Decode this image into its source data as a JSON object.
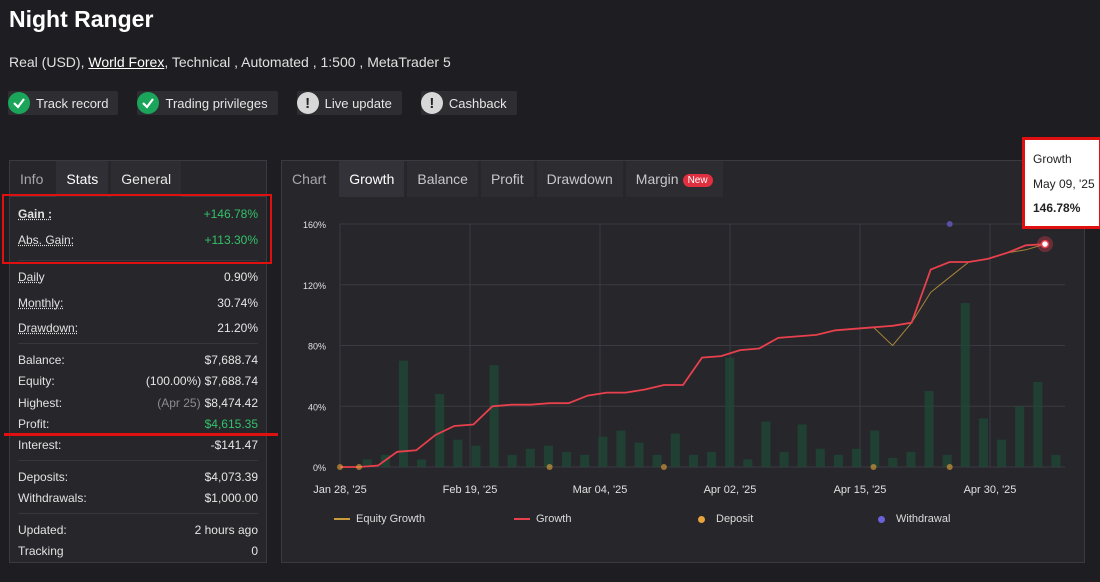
{
  "header": {
    "title": "Night Ranger",
    "sub_prefix": "Real (USD),",
    "broker": "World Forex",
    "sub_suffix": ", Technical , Automated , 1:500 , MetaTrader 5"
  },
  "badges": [
    {
      "label": "Track record",
      "status": "check-icon",
      "color": "#1aa55a"
    },
    {
      "label": "Trading privileges",
      "status": "check-icon",
      "color": "#1aa55a"
    },
    {
      "label": "Live update",
      "status": "exclamation-icon",
      "color": "#d8d8d8"
    },
    {
      "label": "Cashback",
      "status": "exclamation-icon",
      "color": "#d8d8d8"
    }
  ],
  "left_tabs": [
    "Info",
    "Stats",
    "General"
  ],
  "stats": {
    "gain": {
      "label": "Gain :",
      "value": "+146.78%"
    },
    "abs_gain": {
      "label": "Abs. Gain:",
      "value": "+113.30%"
    },
    "daily": {
      "label": "Daily",
      "value": "0.90%"
    },
    "monthly": {
      "label": "Monthly:",
      "value": "30.74%"
    },
    "drawdown": {
      "label": "Drawdown:",
      "value": "21.20%"
    },
    "balance": {
      "label": "Balance:",
      "value": "$7,688.74"
    },
    "equity": {
      "label": "Equity:",
      "value": "(100.00%) $7,688.74"
    },
    "highest": {
      "label": "Highest:",
      "note": "(Apr 25)",
      "value": "$8,474.42"
    },
    "profit": {
      "label": "Profit:",
      "value": "$4,615.35"
    },
    "interest": {
      "label": "Interest:",
      "value": "-$141.47"
    },
    "deposits": {
      "label": "Deposits:",
      "value": "$4,073.39"
    },
    "withdrawals": {
      "label": "Withdrawals:",
      "value": "$1,000.00"
    },
    "updated": {
      "label": "Updated:",
      "value": "2 hours ago"
    },
    "tracking": {
      "label": "Tracking",
      "value": "0"
    }
  },
  "chart_tabs": [
    "Chart",
    "Growth",
    "Balance",
    "Profit",
    "Drawdown",
    "Margin"
  ],
  "new_badge": "New",
  "tooltip": {
    "series": "Growth",
    "date": "May 09, '25",
    "value": "146.78%"
  },
  "chart_data": {
    "type": "line",
    "ylim": [
      0,
      160
    ],
    "y_ticks": [
      "0%",
      "40%",
      "80%",
      "120%",
      "160%"
    ],
    "x_ticks": [
      "Jan 28, '25",
      "Feb 19, '25",
      "Mar 04, '25",
      "Apr 02, '25",
      "Apr 15, '25",
      "Apr 30, '25"
    ],
    "legend": [
      "Equity Growth",
      "Growth",
      "Deposit",
      "Withdrawal"
    ],
    "colors": {
      "growth": "#e8404c",
      "equity": "#c89b3c",
      "deposit": "#e8a33c",
      "withdrawal": "#6a62d8",
      "bars": "#1f4a38"
    },
    "growth": [
      0,
      0,
      1,
      10,
      11,
      21,
      27,
      28,
      40,
      41,
      41,
      42,
      42,
      47,
      49,
      49,
      51,
      54,
      54,
      72,
      73,
      77,
      78,
      85,
      86,
      87,
      90,
      91,
      92,
      93,
      95,
      130,
      135,
      135,
      137,
      141,
      146,
      146.78
    ],
    "equity": [
      0,
      0,
      1,
      10,
      11,
      21,
      27,
      28,
      40,
      41,
      41,
      42,
      42,
      47,
      49,
      49,
      51,
      54,
      54,
      72,
      73,
      77,
      78,
      85,
      86,
      87,
      90,
      91,
      92,
      80,
      95,
      115,
      125,
      135,
      137,
      141,
      143,
      146.78
    ],
    "bars": [
      0,
      5,
      8,
      70,
      5,
      48,
      18,
      14,
      67,
      8,
      12,
      14,
      10,
      8,
      20,
      24,
      16,
      8,
      22,
      8,
      10,
      72,
      5,
      30,
      10,
      28,
      12,
      8,
      12,
      24,
      6,
      10,
      50,
      8,
      108,
      32,
      18,
      40,
      56,
      8
    ],
    "deposit_at": [
      0,
      1,
      11,
      17,
      28,
      32
    ],
    "withdrawal_at": [
      32
    ]
  }
}
